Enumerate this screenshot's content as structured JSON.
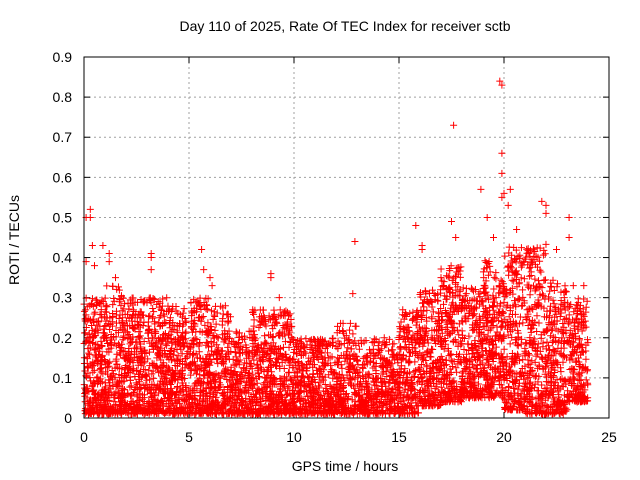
{
  "chart_data": {
    "type": "scatter",
    "title": "Day 110 of 2025, Rate Of TEC Index for receiver sctb",
    "xlabel": "GPS time / hours",
    "ylabel": "ROTI / TECUs",
    "xlim": [
      0,
      25
    ],
    "ylim": [
      0,
      0.9
    ],
    "x_ticks": [
      0,
      5,
      10,
      15,
      20,
      25
    ],
    "y_ticks": [
      0,
      0.1,
      0.2,
      0.3,
      0.4,
      0.5,
      0.6,
      0.7,
      0.8,
      0.9
    ],
    "x_tick_labels": [
      "0",
      "5",
      "10",
      "15",
      "20",
      "25"
    ],
    "y_tick_labels": [
      "0",
      "0.1",
      "0.2",
      "0.3",
      "0.4",
      "0.5",
      "0.6",
      "0.7",
      "0.8",
      "0.9"
    ],
    "grid": true,
    "marker": "+",
    "marker_color": "#ff0000",
    "series": [
      {
        "points": [
          [
            0.1,
            0.5
          ],
          [
            0.1,
            0.39
          ],
          [
            0.3,
            0.52
          ],
          [
            0.3,
            0.5
          ],
          [
            0.4,
            0.43
          ],
          [
            0.5,
            0.38
          ],
          [
            0.9,
            0.43
          ],
          [
            1.2,
            0.41
          ],
          [
            1.2,
            0.39
          ],
          [
            1.5,
            0.35
          ],
          [
            3.2,
            0.41
          ],
          [
            3.2,
            0.4
          ],
          [
            3.2,
            0.37
          ],
          [
            5.6,
            0.42
          ],
          [
            5.7,
            0.37
          ],
          [
            6.0,
            0.35
          ],
          [
            6.1,
            0.33
          ],
          [
            8.9,
            0.36
          ],
          [
            8.9,
            0.35
          ],
          [
            9.3,
            0.3
          ],
          [
            12.9,
            0.44
          ],
          [
            12.8,
            0.31
          ],
          [
            15.8,
            0.48
          ],
          [
            16.1,
            0.43
          ],
          [
            16.1,
            0.42
          ],
          [
            17.0,
            0.35
          ],
          [
            17.6,
            0.73
          ],
          [
            17.5,
            0.49
          ],
          [
            17.7,
            0.45
          ],
          [
            18.9,
            0.57
          ],
          [
            19.2,
            0.5
          ],
          [
            19.5,
            0.45
          ],
          [
            19.8,
            0.84
          ],
          [
            19.9,
            0.83
          ],
          [
            19.9,
            0.66
          ],
          [
            19.9,
            0.61
          ],
          [
            19.9,
            0.55
          ],
          [
            20.0,
            0.56
          ],
          [
            20.2,
            0.53
          ],
          [
            20.3,
            0.57
          ],
          [
            20.6,
            0.47
          ],
          [
            21.8,
            0.54
          ],
          [
            22.0,
            0.53
          ],
          [
            22.0,
            0.51
          ],
          [
            22.5,
            0.42
          ],
          [
            23.1,
            0.5
          ],
          [
            23.1,
            0.45
          ],
          [
            23.3,
            0.33
          ],
          [
            23.8,
            0.33
          ]
        ]
      }
    ],
    "density_bands": [
      {
        "x0": 0.0,
        "x1": 1.0,
        "lo": 0.01,
        "hi": 0.3,
        "count": 260
      },
      {
        "x0": 1.0,
        "x1": 2.0,
        "lo": 0.01,
        "hi": 0.33,
        "count": 250
      },
      {
        "x0": 2.0,
        "x1": 3.0,
        "lo": 0.01,
        "hi": 0.3,
        "count": 240
      },
      {
        "x0": 3.0,
        "x1": 4.0,
        "lo": 0.01,
        "hi": 0.3,
        "count": 240
      },
      {
        "x0": 4.0,
        "x1": 5.0,
        "lo": 0.01,
        "hi": 0.28,
        "count": 230
      },
      {
        "x0": 5.0,
        "x1": 6.0,
        "lo": 0.01,
        "hi": 0.3,
        "count": 240
      },
      {
        "x0": 6.0,
        "x1": 7.0,
        "lo": 0.01,
        "hi": 0.28,
        "count": 230
      },
      {
        "x0": 7.0,
        "x1": 8.0,
        "lo": 0.01,
        "hi": 0.22,
        "count": 210
      },
      {
        "x0": 8.0,
        "x1": 9.0,
        "lo": 0.01,
        "hi": 0.27,
        "count": 240
      },
      {
        "x0": 9.0,
        "x1": 10.0,
        "lo": 0.01,
        "hi": 0.27,
        "count": 240
      },
      {
        "x0": 10.0,
        "x1": 11.0,
        "lo": 0.01,
        "hi": 0.2,
        "count": 210
      },
      {
        "x0": 11.0,
        "x1": 12.0,
        "lo": 0.01,
        "hi": 0.2,
        "count": 200
      },
      {
        "x0": 12.0,
        "x1": 13.0,
        "lo": 0.01,
        "hi": 0.24,
        "count": 200
      },
      {
        "x0": 13.0,
        "x1": 14.0,
        "lo": 0.01,
        "hi": 0.2,
        "count": 200
      },
      {
        "x0": 14.0,
        "x1": 15.0,
        "lo": 0.01,
        "hi": 0.2,
        "count": 190
      },
      {
        "x0": 15.0,
        "x1": 16.0,
        "lo": 0.01,
        "hi": 0.27,
        "count": 220
      },
      {
        "x0": 16.0,
        "x1": 17.0,
        "lo": 0.03,
        "hi": 0.32,
        "count": 240
      },
      {
        "x0": 17.0,
        "x1": 18.0,
        "lo": 0.04,
        "hi": 0.38,
        "count": 250
      },
      {
        "x0": 18.0,
        "x1": 19.0,
        "lo": 0.05,
        "hi": 0.33,
        "count": 240
      },
      {
        "x0": 19.0,
        "x1": 20.0,
        "lo": 0.05,
        "hi": 0.4,
        "count": 260
      },
      {
        "x0": 20.0,
        "x1": 21.0,
        "lo": 0.02,
        "hi": 0.43,
        "count": 250
      },
      {
        "x0": 21.0,
        "x1": 22.0,
        "lo": 0.01,
        "hi": 0.44,
        "count": 250
      },
      {
        "x0": 22.0,
        "x1": 23.0,
        "lo": 0.01,
        "hi": 0.35,
        "count": 230
      },
      {
        "x0": 23.0,
        "x1": 24.0,
        "lo": 0.04,
        "hi": 0.3,
        "count": 210
      }
    ]
  }
}
